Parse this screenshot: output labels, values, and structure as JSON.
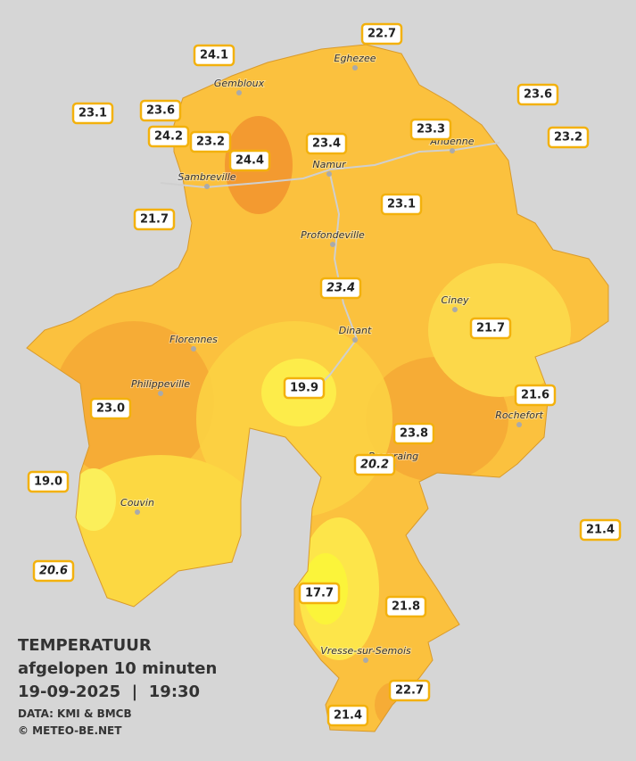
{
  "title": {
    "line1": "TEMPERATUUR",
    "line2": "afgelopen 10 minuten",
    "line3": "19-09-2025  |  19:30",
    "source": "DATA: KMI & BMCB",
    "copyright": "© METEO-BE.NET"
  },
  "cities": [
    "Eghezee",
    "Gembloux",
    "Andenne",
    "Namur",
    "Sambreville",
    "Profondeville",
    "Ciney",
    "Dinant",
    "Florennes",
    "Philippeville",
    "Rochefort",
    "Beauraing",
    "Couvin",
    "Vresse-sur-Semois"
  ],
  "stations": [
    {
      "label": "22.7"
    },
    {
      "label": "24.1"
    },
    {
      "label": "23.6"
    },
    {
      "label": "23.1"
    },
    {
      "label": "23.6"
    },
    {
      "label": "24.2"
    },
    {
      "label": "23.2"
    },
    {
      "label": "24.4"
    },
    {
      "label": "23.4"
    },
    {
      "label": "23.3"
    },
    {
      "label": "23.2"
    },
    {
      "label": "23.1"
    },
    {
      "label": "21.7"
    },
    {
      "label": "23.4",
      "italic": true
    },
    {
      "label": "21.7"
    },
    {
      "label": "19.9"
    },
    {
      "label": "21.6"
    },
    {
      "label": "23.0"
    },
    {
      "label": "23.8"
    },
    {
      "label": "20.2",
      "italic": true
    },
    {
      "label": "19.0"
    },
    {
      "label": "21.4"
    },
    {
      "label": "20.6",
      "italic": true
    },
    {
      "label": "17.7"
    },
    {
      "label": "21.8"
    },
    {
      "label": "22.7"
    },
    {
      "label": "21.4"
    }
  ]
}
